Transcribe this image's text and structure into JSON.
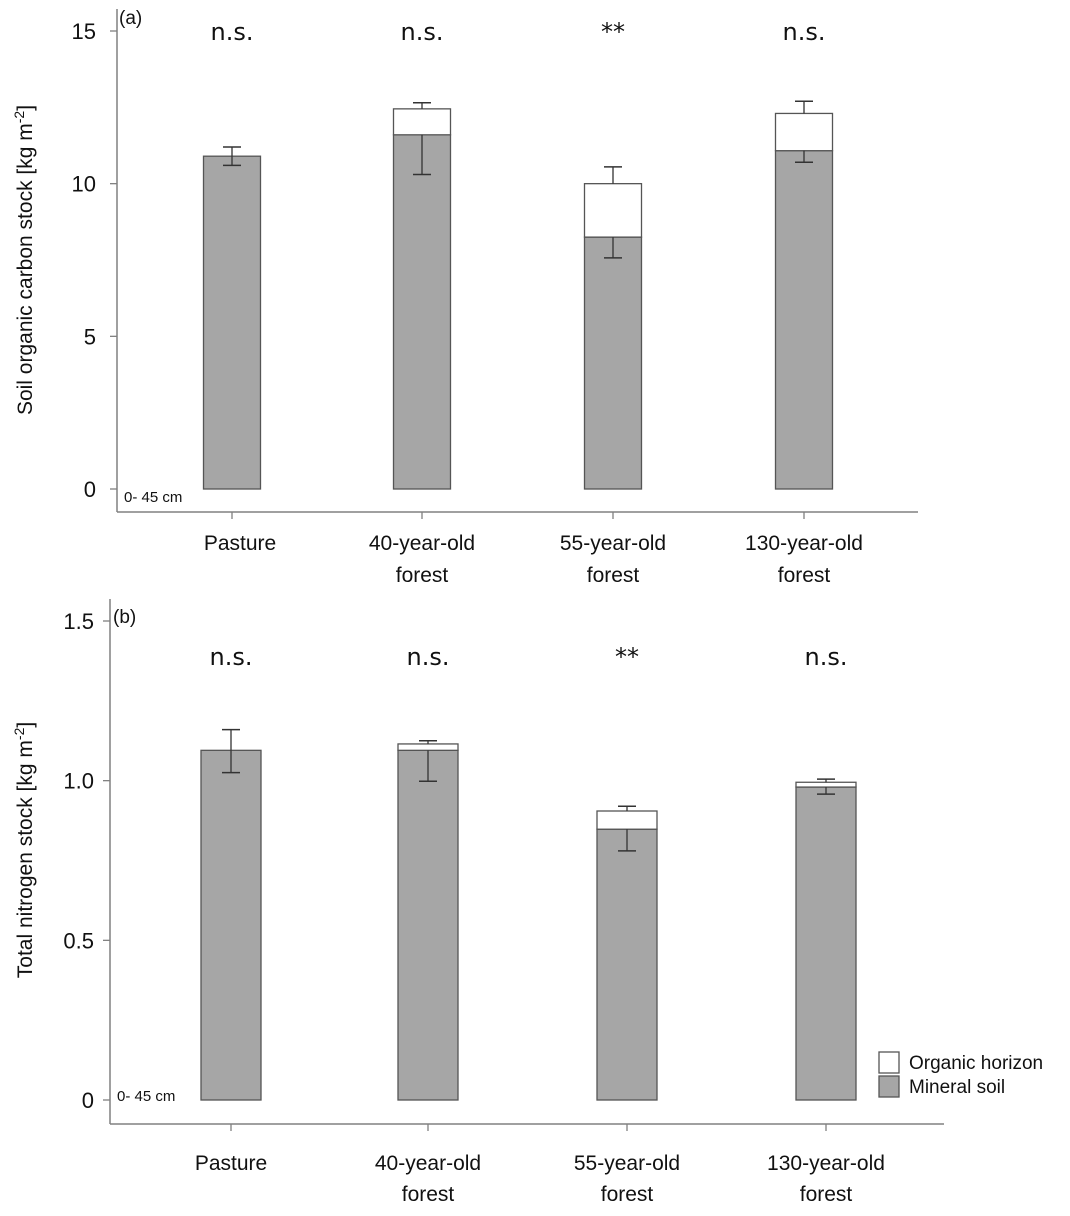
{
  "chart_data": [
    {
      "type": "bar",
      "stacked": true,
      "panel": "(a)",
      "title": "",
      "xlabel": "",
      "ylabel": "Soil organic carbon stock [kg m-2]",
      "ylabel_main": "Soil organic carbon stock [kg m",
      "ylabel_sup": "-2",
      "ylabel_end": "]",
      "ylim": [
        0,
        15
      ],
      "yticks": [
        0,
        5,
        10,
        15
      ],
      "ytick_labels": [
        "0",
        "5",
        "10",
        "15"
      ],
      "depth_note": "0- 45 cm",
      "categories": [
        [
          "Pasture"
        ],
        [
          "40-year-old",
          "forest"
        ],
        [
          "55-year-old",
          "forest"
        ],
        [
          "130-year-old",
          "forest"
        ]
      ],
      "series": [
        {
          "name": "Mineral soil",
          "values": [
            10.9,
            11.6,
            8.25,
            11.08
          ],
          "error_low": [
            10.6,
            10.3,
            7.57,
            10.7
          ]
        },
        {
          "name": "Organic horizon",
          "values": [
            0,
            0.85,
            1.75,
            1.22
          ],
          "error_high_total": [
            11.2,
            12.65,
            10.55,
            12.7
          ]
        }
      ],
      "significance": [
        "n.s.",
        "n.s.",
        "**",
        "n.s."
      ],
      "grid": false
    },
    {
      "type": "bar",
      "stacked": true,
      "panel": "(b)",
      "title": "",
      "xlabel": "",
      "ylabel": "Total nitrogen stock [kg m-2]",
      "ylabel_main": "Total nitrogen stock [kg m",
      "ylabel_sup": "-2",
      "ylabel_end": "]",
      "ylim": [
        0,
        1.5
      ],
      "yticks": [
        0,
        0.5,
        1.0,
        1.5
      ],
      "ytick_labels": [
        "0",
        "0.5",
        "1.0",
        "1.5"
      ],
      "depth_note": "0- 45 cm",
      "categories": [
        [
          "Pasture"
        ],
        [
          "40-year-old",
          "forest"
        ],
        [
          "55-year-old",
          "forest"
        ],
        [
          "130-year-old",
          "forest"
        ]
      ],
      "series": [
        {
          "name": "Mineral soil",
          "values": [
            1.095,
            1.095,
            0.848,
            0.98
          ],
          "error_low": [
            1.025,
            0.998,
            0.78,
            0.958
          ]
        },
        {
          "name": "Organic horizon",
          "values": [
            0,
            0.02,
            0.057,
            0.015
          ],
          "error_high_total": [
            1.16,
            1.125,
            0.92,
            1.005
          ]
        }
      ],
      "significance": [
        "n.s.",
        "n.s.",
        "**",
        "n.s."
      ],
      "grid": false,
      "legend": {
        "position": "bottom-right",
        "entries": [
          {
            "label": "Organic horizon",
            "color": "#ffffff"
          },
          {
            "label": "Mineral soil",
            "color": "#a6a6a6"
          }
        ]
      }
    }
  ],
  "colors": {
    "mineral": "#a6a6a6",
    "organic": "#ffffff",
    "outline": "#555555",
    "axis": "#808080",
    "error": "#333333"
  }
}
